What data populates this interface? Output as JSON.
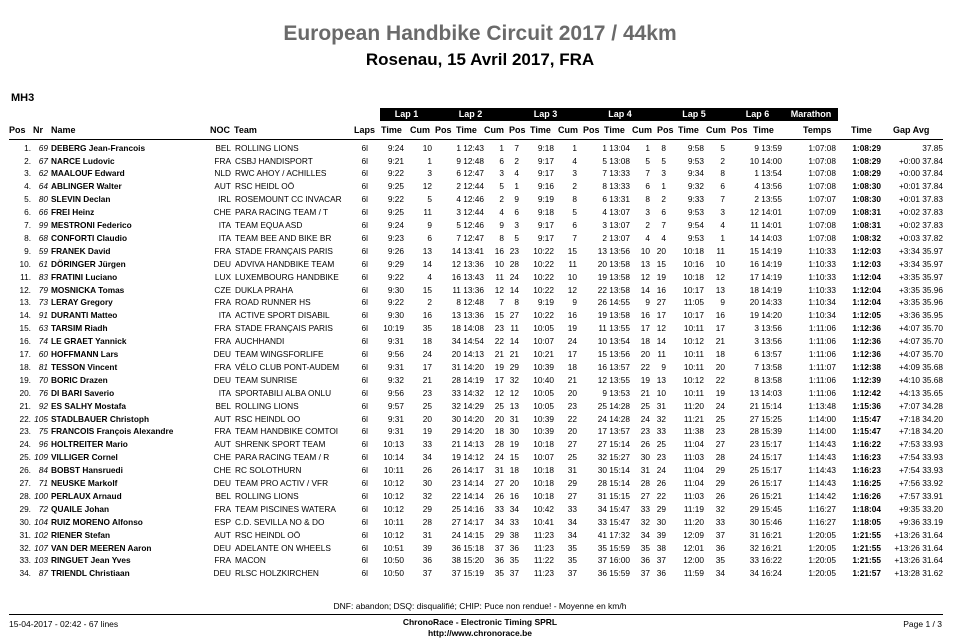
{
  "header": {
    "title": "European Handbike Circuit 2017 / 44km",
    "subtitle": "Rosenau, 15 Avril 2017, FRA",
    "category": "MH3"
  },
  "lap_headers": [
    "Lap 1",
    "Lap 2",
    "Lap 3",
    "Lap 4",
    "Lap 5",
    "Lap 6",
    "Marathon"
  ],
  "columns": {
    "pos": "Pos",
    "nr": "Nr",
    "name": "Name",
    "noc": "NOC",
    "team": "Team",
    "laps": "Laps",
    "l1_time": "Time",
    "l1_cum": "Cum",
    "l2_pos": "Pos",
    "l2_time": "Time",
    "l2_cum": "Cum",
    "l3_pos": "Pos",
    "l3_time": "Time",
    "l3_cum": "Cum",
    "l4_pos": "Pos",
    "l4_time": "Time",
    "l4_cum": "Cum",
    "l5_pos": "Pos",
    "l5_time": "Time",
    "l5_cum": "Cum",
    "l6_pos": "Pos",
    "l6_time": "Time",
    "temps": "Temps",
    "time": "Time",
    "gap": "Gap Avg"
  },
  "rows": [
    [
      "1.",
      "69",
      "DEBERG Jean-Francois",
      "BEL",
      "ROLLING LIONS",
      "6l",
      "9:24",
      "10",
      "1 12:43",
      "1",
      "7",
      "9:18",
      "1",
      "1 13:04",
      "1",
      "8",
      "9:58",
      "5",
      "9 13:59",
      "1:07:08",
      "1:08:29",
      "37.85"
    ],
    [
      "2.",
      "67",
      "NARCE Ludovic",
      "FRA",
      "CSBJ HANDISPORT",
      "6l",
      "9:21",
      "1",
      "9 12:48",
      "6",
      "2",
      "9:17",
      "4",
      "5 13:08",
      "5",
      "5",
      "9:53",
      "2",
      "10 14:00",
      "1:07:08",
      "1:08:29",
      "+0:00 37.84"
    ],
    [
      "3.",
      "62",
      "MAALOUF Edward",
      "NLD",
      "RWC AHOY / ACHILLES",
      "6l",
      "9:22",
      "3",
      "6 12:47",
      "3",
      "4",
      "9:17",
      "3",
      "7 13:33",
      "7",
      "3",
      "9:34",
      "8",
      "1 13:54",
      "1:07:08",
      "1:08:29",
      "+0:00 37.84"
    ],
    [
      "4.",
      "64",
      "ABLINGER Walter",
      "AUT",
      "RSC HEIDL OÖ",
      "6l",
      "9:25",
      "12",
      "2 12:44",
      "5",
      "1",
      "9:16",
      "2",
      "8 13:33",
      "6",
      "1",
      "9:32",
      "6",
      "4 13:56",
      "1:07:08",
      "1:08:30",
      "+0:01 37.84"
    ],
    [
      "5.",
      "80",
      "SLEVIN Declan",
      "IRL",
      "ROSEMOUNT CC INVACAR",
      "6l",
      "9:22",
      "5",
      "4 12:46",
      "2",
      "9",
      "9:19",
      "8",
      "6 13:31",
      "8",
      "2",
      "9:33",
      "7",
      "2 13:55",
      "1:07:07",
      "1:08:30",
      "+0:01 37.83"
    ],
    [
      "6.",
      "66",
      "FREI Heinz",
      "CHE",
      "PARA RACING TEAM / T",
      "6l",
      "9:25",
      "11",
      "3 12:44",
      "4",
      "6",
      "9:18",
      "5",
      "4 13:07",
      "3",
      "6",
      "9:53",
      "3",
      "12 14:01",
      "1:07:09",
      "1:08:31",
      "+0:02 37.83"
    ],
    [
      "7.",
      "99",
      "MESTRONI Federico",
      "ITA",
      "TEAM EQUA ASD",
      "6l",
      "9:24",
      "9",
      "5 12:46",
      "9",
      "3",
      "9:17",
      "6",
      "3 13:07",
      "2",
      "7",
      "9:54",
      "4",
      "11 14:01",
      "1:07:08",
      "1:08:31",
      "+0:02 37.83"
    ],
    [
      "8.",
      "68",
      "CONFORTI Claudio",
      "ITA",
      "TEAM BEE AND BIKE BR",
      "6l",
      "9:23",
      "6",
      "7 12:47",
      "8",
      "5",
      "9:17",
      "7",
      "2 13:07",
      "4",
      "4",
      "9:53",
      "1",
      "14 14:03",
      "1:07:08",
      "1:08:32",
      "+0:03 37.82"
    ],
    [
      "9.",
      "59",
      "FRANEK David",
      "FRA",
      "STADE FRANÇAIS PARIS",
      "6l",
      "9:26",
      "13",
      "14 13:41",
      "16",
      "23",
      "10:22",
      "15",
      "13 13:56",
      "10",
      "20",
      "10:18",
      "11",
      "15 14:19",
      "1:10:33",
      "1:12:03",
      "+3:34 35.97"
    ],
    [
      "10.",
      "61",
      "DÖRINGER Jürgen",
      "DEU",
      "ADVIVA HANDBIKE TEAM",
      "6l",
      "9:29",
      "14",
      "12 13:36",
      "10",
      "28",
      "10:22",
      "11",
      "20 13:58",
      "13",
      "15",
      "10:16",
      "10",
      "16 14:19",
      "1:10:33",
      "1:12:03",
      "+3:34 35.97"
    ],
    [
      "11.",
      "83",
      "FRATINI Luciano",
      "LUX",
      "LUXEMBOURG HANDBIKE",
      "6l",
      "9:22",
      "4",
      "16 13:43",
      "11",
      "24",
      "10:22",
      "10",
      "19 13:58",
      "12",
      "19",
      "10:18",
      "12",
      "17 14:19",
      "1:10:33",
      "1:12:04",
      "+3:35 35.97"
    ],
    [
      "12.",
      "79",
      "MOSNICKA Tomas",
      "CZE",
      "DUKLA PRAHA",
      "6l",
      "9:30",
      "15",
      "11 13:36",
      "12",
      "14",
      "10:22",
      "12",
      "22 13:58",
      "14",
      "16",
      "10:17",
      "13",
      "18 14:19",
      "1:10:33",
      "1:12:04",
      "+3:35 35.96"
    ],
    [
      "13.",
      "73",
      "LERAY Gregory",
      "FRA",
      "ROAD RUNNER HS",
      "6l",
      "9:22",
      "2",
      "8 12:48",
      "7",
      "8",
      "9:19",
      "9",
      "26 14:55",
      "9",
      "27",
      "11:05",
      "9",
      "20 14:33",
      "1:10:34",
      "1:12:04",
      "+3:35 35.96"
    ],
    [
      "14.",
      "91",
      "DURANTI Matteo",
      "ITA",
      "ACTIVE SPORT DISABIL",
      "6l",
      "9:30",
      "16",
      "13 13:36",
      "15",
      "27",
      "10:22",
      "16",
      "19 13:58",
      "16",
      "17",
      "10:17",
      "16",
      "19 14:20",
      "1:10:34",
      "1:12:05",
      "+3:36 35.95"
    ],
    [
      "15.",
      "63",
      "TARSIM Riadh",
      "FRA",
      "STADE FRANÇAIS PARIS",
      "6l",
      "10:19",
      "35",
      "18 14:08",
      "23",
      "11",
      "10:05",
      "19",
      "11 13:55",
      "17",
      "12",
      "10:11",
      "17",
      "3 13:56",
      "1:11:06",
      "1:12:36",
      "+4:07 35.70"
    ],
    [
      "16.",
      "74",
      "LE GRAET Yannick",
      "FRA",
      "AUCHHANDI",
      "6l",
      "9:31",
      "18",
      "34 14:54",
      "22",
      "14",
      "10:07",
      "24",
      "10 13:54",
      "18",
      "14",
      "10:12",
      "21",
      "3 13:56",
      "1:11:06",
      "1:12:36",
      "+4:07 35.70"
    ],
    [
      "17.",
      "60",
      "HOFFMANN Lars",
      "DEU",
      "TEAM WINGSFORLIFE",
      "6l",
      "9:56",
      "24",
      "20 14:13",
      "21",
      "21",
      "10:21",
      "17",
      "15 13:56",
      "20",
      "11",
      "10:11",
      "18",
      "6 13:57",
      "1:11:06",
      "1:12:36",
      "+4:07 35.70"
    ],
    [
      "18.",
      "81",
      "TESSON Vincent",
      "FRA",
      "VÉLO CLUB PONT-AUDEM",
      "6l",
      "9:31",
      "17",
      "31 14:20",
      "19",
      "29",
      "10:39",
      "18",
      "16 13:57",
      "22",
      "9",
      "10:11",
      "20",
      "7 13:58",
      "1:11:07",
      "1:12:38",
      "+4:09 35.68"
    ],
    [
      "19.",
      "70",
      "BORIC Drazen",
      "DEU",
      "TEAM SUNRISE",
      "6l",
      "9:32",
      "21",
      "28 14:19",
      "17",
      "32",
      "10:40",
      "21",
      "12 13:55",
      "19",
      "13",
      "10:12",
      "22",
      "8 13:58",
      "1:11:06",
      "1:12:39",
      "+4:10 35.68"
    ],
    [
      "20.",
      "76",
      "DI BARI Saverio",
      "ITA",
      "SPORTABILI ALBA ONLU",
      "6l",
      "9:56",
      "23",
      "33 14:32",
      "12",
      "12",
      "10:05",
      "20",
      "9 13:53",
      "21",
      "10",
      "10:11",
      "19",
      "13 14:03",
      "1:11:06",
      "1:12:42",
      "+4:13 35.65"
    ],
    [
      "21.",
      "92",
      "ES SALHY Mostafa",
      "BEL",
      "ROLLING LIONS",
      "6l",
      "9:57",
      "25",
      "32 14:29",
      "25",
      "13",
      "10:05",
      "23",
      "25 14:28",
      "25",
      "31",
      "11:20",
      "24",
      "21 15:14",
      "1:13:48",
      "1:15:36",
      "+7:07 34.28"
    ],
    [
      "22.",
      "105",
      "STADLBAUER Christoph",
      "AUT",
      "RSC HEINDL OO",
      "6l",
      "9:31",
      "20",
      "30 14:20",
      "20",
      "31",
      "10:39",
      "22",
      "24 14:28",
      "24",
      "32",
      "11:21",
      "25",
      "27 15:25",
      "1:14:00",
      "1:15:47",
      "+7:18 34.20"
    ],
    [
      "23.",
      "75",
      "FRANCOIS François Alexandre",
      "FRA",
      "TEAM HANDBIKE COMTOI",
      "6l",
      "9:31",
      "19",
      "29 14:20",
      "18",
      "30",
      "10:39",
      "20",
      "17 13:57",
      "23",
      "33",
      "11:38",
      "23",
      "28 15:39",
      "1:14:00",
      "1:15:47",
      "+7:18 34.20"
    ],
    [
      "24.",
      "96",
      "HOLTREITER Mario",
      "AUT",
      "SHRENK SPORT TEAM",
      "6l",
      "10:13",
      "33",
      "21 14:13",
      "28",
      "19",
      "10:18",
      "27",
      "27 15:14",
      "26",
      "25",
      "11:04",
      "27",
      "23 15:17",
      "1:14:43",
      "1:16:22",
      "+7:53 33.93"
    ],
    [
      "25.",
      "109",
      "VILLIGER Cornel",
      "CHE",
      "PARA RACING TEAM / R",
      "6l",
      "10:14",
      "34",
      "19 14:12",
      "24",
      "15",
      "10:07",
      "25",
      "32 15:27",
      "30",
      "23",
      "11:03",
      "28",
      "24 15:17",
      "1:14:43",
      "1:16:23",
      "+7:54 33.93"
    ],
    [
      "26.",
      "84",
      "BOBST Hansruedi",
      "CHE",
      "RC SOLOTHURN",
      "6l",
      "10:11",
      "26",
      "26 14:17",
      "31",
      "18",
      "10:18",
      "31",
      "30 15:14",
      "31",
      "24",
      "11:04",
      "29",
      "25 15:17",
      "1:14:43",
      "1:16:23",
      "+7:54 33.93"
    ],
    [
      "27.",
      "71",
      "NEUSKE Markolf",
      "DEU",
      "TEAM PRO ACTIV / VFR",
      "6l",
      "10:12",
      "30",
      "23 14:14",
      "27",
      "20",
      "10:18",
      "29",
      "28 15:14",
      "28",
      "26",
      "11:04",
      "29",
      "26 15:17",
      "1:14:43",
      "1:16:25",
      "+7:56 33.92"
    ],
    [
      "28.",
      "100",
      "PERLAUX Arnaud",
      "BEL",
      "ROLLING LIONS",
      "6l",
      "10:12",
      "32",
      "22 14:14",
      "26",
      "16",
      "10:18",
      "27",
      "31 15:15",
      "27",
      "22",
      "11:03",
      "26",
      "26 15:21",
      "1:14:42",
      "1:16:26",
      "+7:57 33.91"
    ],
    [
      "29.",
      "72",
      "QUAILE Johan",
      "FRA",
      "TEAM PISCINES WATERA",
      "6l",
      "10:12",
      "29",
      "25 14:16",
      "33",
      "34",
      "10:42",
      "33",
      "34 15:47",
      "33",
      "29",
      "11:19",
      "32",
      "29 15:45",
      "1:16:27",
      "1:18:04",
      "+9:35 33.20"
    ],
    [
      "30.",
      "104",
      "RUIZ MORENO Alfonso",
      "ESP",
      "C.D. SEVILLA NO & DO",
      "6l",
      "10:11",
      "28",
      "27 14:17",
      "34",
      "33",
      "10:41",
      "34",
      "33 15:47",
      "32",
      "30",
      "11:20",
      "33",
      "30 15:46",
      "1:16:27",
      "1:18:05",
      "+9:36 33.19"
    ],
    [
      "31.",
      "102",
      "RIENER Stefan",
      "AUT",
      "RSC HEINDL OÖ",
      "6l",
      "10:12",
      "31",
      "24 14:15",
      "29",
      "38",
      "11:23",
      "34",
      "41 17:32",
      "34",
      "39",
      "12:09",
      "37",
      "31 16:21",
      "1:20:05",
      "1:21:55",
      "+13:26 31.64"
    ],
    [
      "32.",
      "107",
      "VAN DER MEEREN Aaron",
      "DEU",
      "ADELANTE ON WHEELS",
      "6l",
      "10:51",
      "39",
      "36 15:18",
      "37",
      "36",
      "11:23",
      "35",
      "35 15:59",
      "35",
      "38",
      "12:01",
      "36",
      "32 16:21",
      "1:20:05",
      "1:21:55",
      "+13:26 31.64"
    ],
    [
      "33.",
      "103",
      "RINGUET Jean Yves",
      "FRA",
      "MACON",
      "6l",
      "10:50",
      "36",
      "38 15:20",
      "36",
      "35",
      "11:22",
      "35",
      "37 16:00",
      "36",
      "37",
      "12:00",
      "35",
      "33 16:22",
      "1:20:05",
      "1:21:55",
      "+13:26 31.64"
    ],
    [
      "34.",
      "87",
      "TRIENDL Christiaan",
      "DEU",
      "RLSC HOLZKIRCHEN",
      "6l",
      "10:50",
      "37",
      "37 15:19",
      "35",
      "37",
      "11:23",
      "37",
      "36 15:59",
      "37",
      "36",
      "11:59",
      "34",
      "34 16:24",
      "1:20:05",
      "1:21:57",
      "+13:28 31.62"
    ]
  ],
  "footnote": "DNF: abandon; DSQ: disqualifié; CHIP: Puce non rendue! - Moyenne en km/h",
  "footer": {
    "left": "15-04-2017 - 02:42 - 67 lines",
    "company": "ChronoRace - Electronic Timing SPRL",
    "url": "http://www.chronorace.be",
    "page": "Page 1 / 3"
  }
}
